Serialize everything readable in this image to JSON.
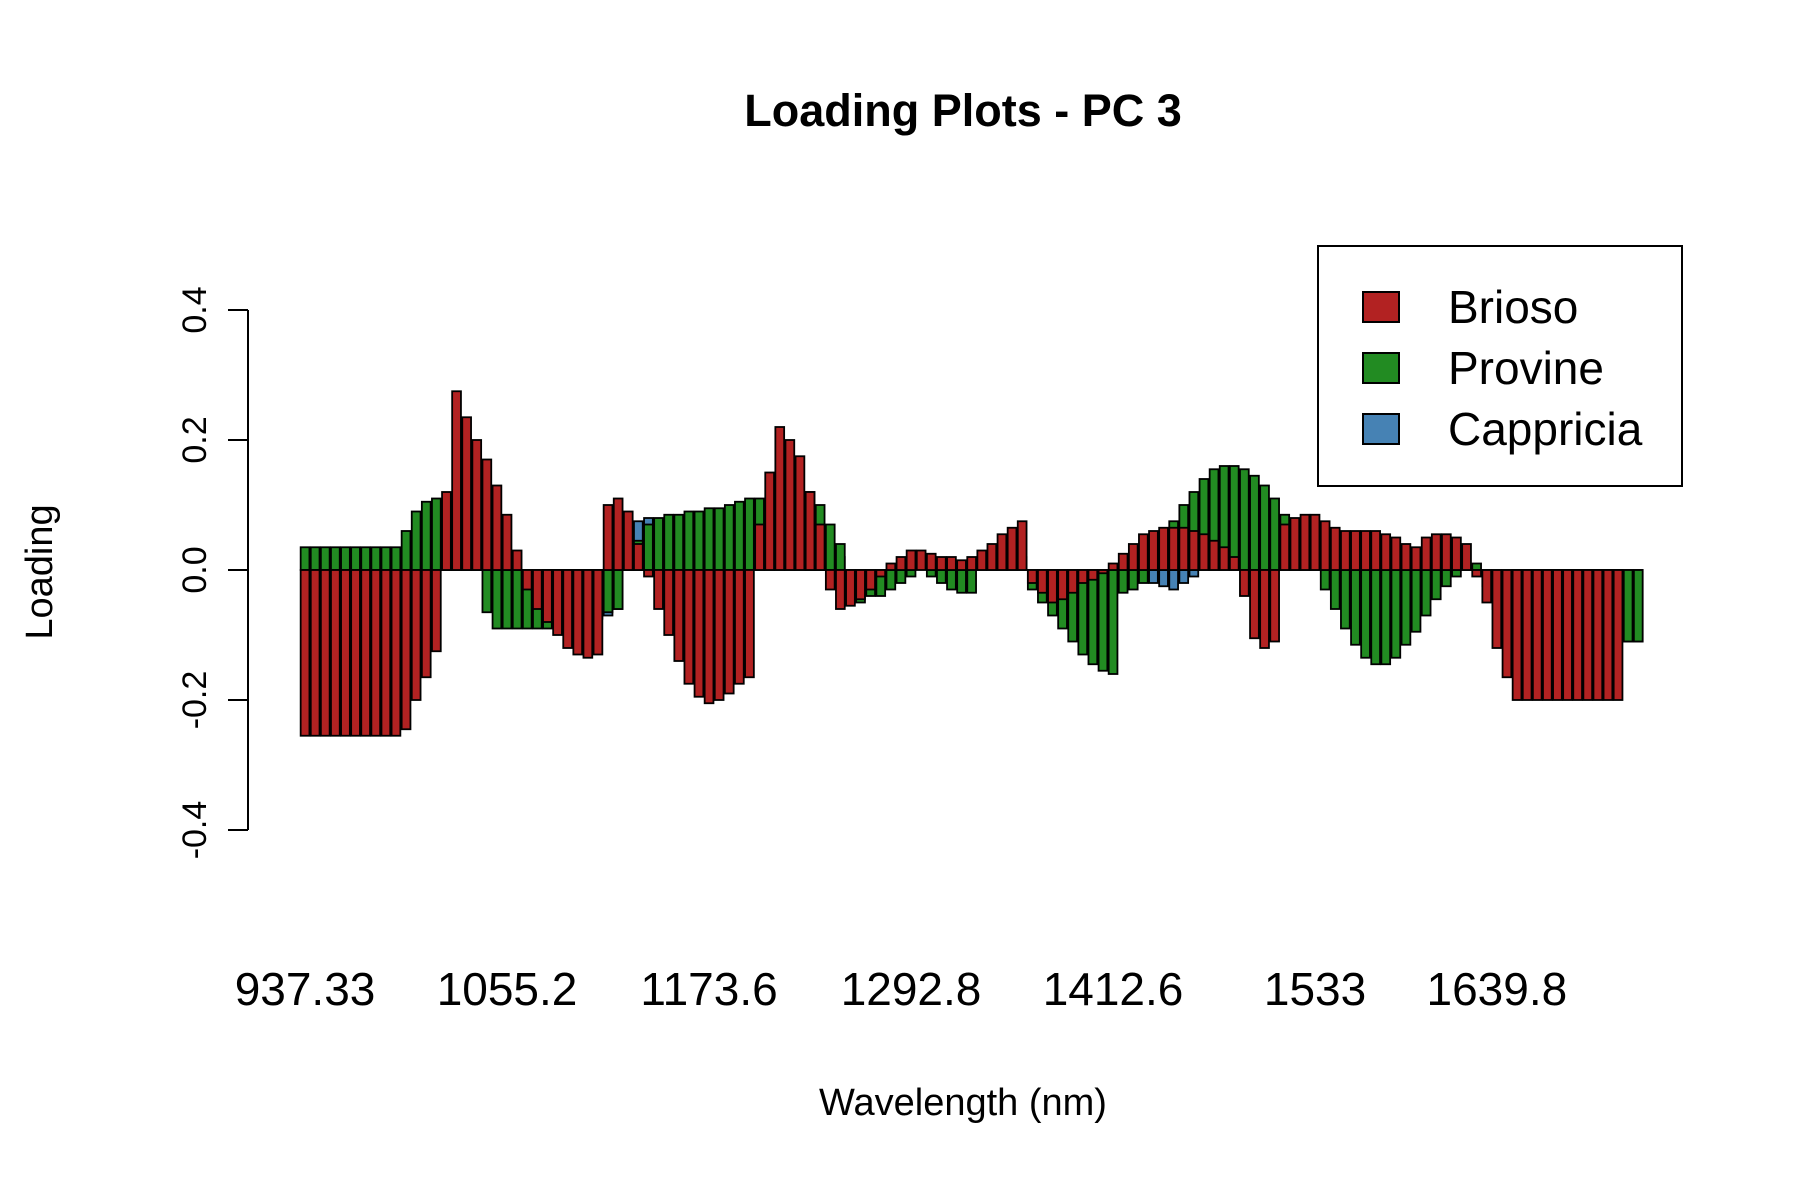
{
  "chart_data": {
    "type": "bar",
    "title": "Loading Plots - PC 3",
    "xlabel": "Wavelength (nm)",
    "ylabel": "Loading",
    "ylim": [
      -0.4,
      0.4
    ],
    "yticks": [
      -0.4,
      -0.2,
      0.0,
      0.2,
      0.4
    ],
    "ytick_labels": [
      "-0.4",
      "-0.2",
      "0.0",
      "0.2",
      "0.4"
    ],
    "xtick_labels": [
      "937.33",
      "1055.2",
      "1173.6",
      "1292.8",
      "1412.6",
      "1533",
      "1639.8"
    ],
    "xtick_bar_index": [
      0,
      20,
      40,
      60,
      80,
      100,
      118
    ],
    "legend": {
      "position": "top-right",
      "entries": [
        "Brioso",
        "Provine",
        "Cappricia"
      ]
    },
    "colors": {
      "Brioso": "#b22222",
      "Provine": "#228b22",
      "Cappricia": "#4682b4"
    },
    "grid": false,
    "stacked": false,
    "n_bars": 131,
    "series": [
      {
        "name": "Cappricia",
        "values": [
          0,
          0,
          0,
          0,
          0,
          0,
          0,
          0,
          0,
          0,
          0,
          0,
          0,
          0,
          0.035,
          0.07,
          0.095,
          0.12,
          0.09,
          0.05,
          0.02,
          0,
          0,
          0,
          -0.01,
          -0.025,
          -0.045,
          -0.06,
          -0.07,
          -0.075,
          -0.07,
          -0.06,
          0.025,
          0.075,
          0.08,
          0.075,
          0.05,
          0.03,
          0.01,
          0,
          0,
          0,
          0,
          0,
          0,
          0,
          0,
          0,
          0,
          0,
          0.07,
          0.065,
          0.04,
          0.02,
          0,
          0,
          0,
          0,
          0,
          0,
          0,
          0,
          0,
          0,
          0,
          0,
          0,
          0,
          0,
          0,
          0,
          0,
          0,
          0,
          0,
          0,
          0,
          0,
          0,
          0,
          0,
          -0.005,
          -0.01,
          -0.015,
          -0.02,
          -0.025,
          -0.03,
          -0.02,
          -0.01,
          0,
          0,
          0,
          0,
          0,
          0,
          0,
          0,
          0,
          0,
          0,
          0,
          0,
          0,
          0,
          0,
          0,
          0,
          0,
          0,
          0,
          0,
          0,
          0,
          0,
          0,
          0,
          0,
          0,
          0,
          0,
          -0.02,
          -0.04,
          -0.07,
          -0.09,
          -0.11,
          -0.11,
          -0.11,
          -0.11,
          -0.11,
          -0.11,
          -0.11,
          -0.11,
          -0.11
        ]
      },
      {
        "name": "Provine",
        "values": [
          0.035,
          0.035,
          0.035,
          0.035,
          0.035,
          0.035,
          0.035,
          0.035,
          0.035,
          0.035,
          0.06,
          0.09,
          0.105,
          0.11,
          0.1,
          0.115,
          0.075,
          0.015,
          -0.065,
          -0.09,
          -0.09,
          -0.09,
          -0.09,
          -0.09,
          -0.09,
          -0.09,
          -0.085,
          -0.08,
          -0.075,
          -0.07,
          -0.065,
          -0.06,
          0.015,
          0.045,
          0.07,
          0.08,
          0.085,
          0.085,
          0.09,
          0.09,
          0.095,
          0.095,
          0.1,
          0.105,
          0.11,
          0.11,
          0.11,
          0.105,
          0.08,
          0.1,
          0.12,
          0.1,
          0.07,
          0.04,
          -0.05,
          -0.05,
          -0.04,
          -0.04,
          -0.03,
          -0.02,
          -0.01,
          0,
          -0.01,
          -0.02,
          -0.03,
          -0.035,
          -0.035,
          0.01,
          0.025,
          0.03,
          0.025,
          0.02,
          -0.03,
          -0.05,
          -0.07,
          -0.09,
          -0.11,
          -0.13,
          -0.145,
          -0.155,
          -0.16,
          -0.035,
          -0.03,
          -0.02,
          0.01,
          0.05,
          0.075,
          0.1,
          0.12,
          0.14,
          0.155,
          0.16,
          0.16,
          0.155,
          0.145,
          0.13,
          0.11,
          0.085,
          0.055,
          0.02,
          0.005,
          -0.03,
          -0.06,
          -0.09,
          -0.115,
          -0.135,
          -0.145,
          -0.145,
          -0.135,
          -0.115,
          -0.095,
          -0.07,
          -0.045,
          -0.025,
          -0.01,
          0.005,
          0.01,
          -0.025,
          -0.06,
          -0.1,
          -0.13,
          -0.155,
          -0.16,
          -0.16,
          -0.16,
          -0.13,
          -0.11,
          -0.11,
          -0.11,
          -0.11,
          -0.11,
          -0.11,
          -0.11
        ]
      },
      {
        "name": "Brioso",
        "values": [
          -0.255,
          -0.255,
          -0.255,
          -0.255,
          -0.255,
          -0.255,
          -0.255,
          -0.255,
          -0.255,
          -0.255,
          -0.245,
          -0.2,
          -0.165,
          -0.125,
          0.12,
          0.275,
          0.235,
          0.2,
          0.17,
          0.13,
          0.085,
          0.03,
          -0.03,
          -0.06,
          -0.08,
          -0.1,
          -0.12,
          -0.13,
          -0.135,
          -0.13,
          0.1,
          0.11,
          0.09,
          0.04,
          -0.01,
          -0.06,
          -0.1,
          -0.14,
          -0.175,
          -0.195,
          -0.205,
          -0.2,
          -0.19,
          -0.175,
          -0.165,
          0.07,
          0.15,
          0.22,
          0.2,
          0.175,
          0.12,
          0.07,
          -0.03,
          -0.06,
          -0.055,
          -0.045,
          -0.03,
          -0.01,
          0.01,
          0.02,
          0.03,
          0.03,
          0.025,
          0.02,
          0.02,
          0.015,
          0.02,
          0.03,
          0.04,
          0.055,
          0.065,
          0.075,
          -0.02,
          -0.035,
          -0.05,
          -0.045,
          -0.035,
          -0.02,
          -0.015,
          -0.005,
          0.01,
          0.025,
          0.04,
          0.055,
          0.06,
          0.065,
          0.065,
          0.065,
          0.06,
          0.055,
          0.045,
          0.035,
          0.02,
          -0.04,
          -0.105,
          -0.12,
          -0.11,
          0.07,
          0.08,
          0.085,
          0.085,
          0.075,
          0.065,
          0.06,
          0.06,
          0.06,
          0.06,
          0.055,
          0.05,
          0.04,
          0.035,
          0.05,
          0.055,
          0.055,
          0.05,
          0.04,
          -0.01,
          -0.05,
          -0.12,
          -0.165,
          -0.2,
          -0.2,
          -0.2,
          -0.2,
          -0.2,
          -0.2,
          -0.2,
          -0.2,
          -0.2,
          -0.2,
          -0.2
        ]
      }
    ]
  }
}
